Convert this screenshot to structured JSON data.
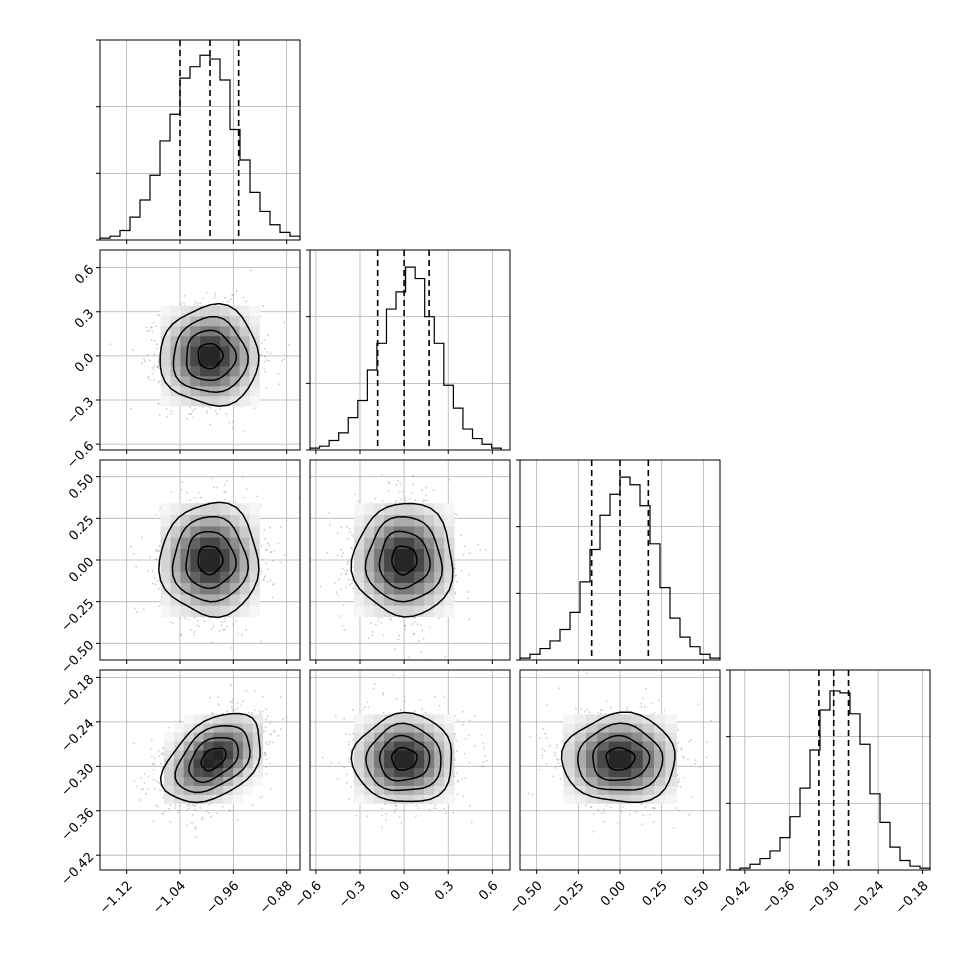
{
  "chart_data": {
    "type": "corner",
    "grid": true,
    "title": "",
    "parameters": [
      {
        "range": [
          -1.16,
          -0.86
        ],
        "ticks": [
          "-1.12",
          "-1.04",
          "-0.96",
          "-0.88"
        ],
        "tick_values": [
          -1.12,
          -1.04,
          -0.96,
          -0.88
        ],
        "quantiles": [
          -1.04,
          -0.995,
          -0.952
        ],
        "mean": -0.995,
        "sd": 0.037
      },
      {
        "range": [
          -0.64,
          0.72
        ],
        "ticks": [
          "-0.6",
          "-0.3",
          "0.0",
          "0.3",
          "0.6"
        ],
        "tick_values": [
          -0.6,
          -0.3,
          0.0,
          0.3,
          0.6
        ],
        "quantiles": [
          -0.18,
          0.0,
          0.17
        ],
        "mean": 0.0,
        "sd": 0.17
      },
      {
        "range": [
          -0.6,
          0.6
        ],
        "ticks": [
          "-0.50",
          "-0.25",
          "0.00",
          "0.25",
          "0.50"
        ],
        "tick_values": [
          -0.5,
          -0.25,
          0.0,
          0.25,
          0.5
        ],
        "quantiles": [
          -0.17,
          0.0,
          0.17
        ],
        "mean": 0.0,
        "sd": 0.17
      },
      {
        "range": [
          -0.44,
          -0.17
        ],
        "ticks": [
          "-0.42",
          "-0.36",
          "-0.30",
          "-0.24",
          "-0.18"
        ],
        "tick_values": [
          -0.42,
          -0.36,
          -0.3,
          -0.24,
          -0.18
        ],
        "quantiles": [
          -0.32,
          -0.3,
          -0.28
        ],
        "mean": -0.3,
        "sd": 0.03
      }
    ],
    "histograms": [
      {
        "bins_left": [
          -1.16,
          -1.145,
          -1.13,
          -1.115,
          -1.1,
          -1.085,
          -1.07,
          -1.055,
          -1.04,
          -1.025,
          -1.01,
          -0.995,
          -0.98,
          -0.965,
          -0.95,
          -0.935,
          -0.92,
          -0.905,
          -0.89,
          -0.875
        ],
        "bin_width": 0.015,
        "counts": [
          0.01,
          0.02,
          0.05,
          0.12,
          0.21,
          0.34,
          0.52,
          0.66,
          0.85,
          0.91,
          0.97,
          0.95,
          0.84,
          0.58,
          0.42,
          0.25,
          0.15,
          0.08,
          0.04,
          0.02
        ]
      },
      {
        "bins_left": [
          -0.64,
          -0.575,
          -0.51,
          -0.445,
          -0.38,
          -0.315,
          -0.25,
          -0.185,
          -0.12,
          -0.055,
          0.01,
          0.075,
          0.14,
          0.205,
          0.27,
          0.335,
          0.4,
          0.465,
          0.53,
          0.595
        ],
        "bin_width": 0.065,
        "counts": [
          0.01,
          0.02,
          0.05,
          0.09,
          0.17,
          0.26,
          0.42,
          0.56,
          0.74,
          0.83,
          0.96,
          0.9,
          0.7,
          0.56,
          0.34,
          0.22,
          0.11,
          0.06,
          0.03,
          0.01
        ]
      },
      {
        "bins_left": [
          -0.6,
          -0.54,
          -0.48,
          -0.42,
          -0.36,
          -0.3,
          -0.24,
          -0.18,
          -0.12,
          -0.06,
          0.0,
          0.06,
          0.12,
          0.18,
          0.24,
          0.3,
          0.36,
          0.42,
          0.48,
          0.54
        ],
        "bin_width": 0.06,
        "counts": [
          0.01,
          0.03,
          0.06,
          0.1,
          0.16,
          0.25,
          0.41,
          0.58,
          0.76,
          0.87,
          0.96,
          0.92,
          0.81,
          0.61,
          0.38,
          0.22,
          0.12,
          0.07,
          0.03,
          0.01
        ]
      },
      {
        "bins_left": [
          -0.44,
          -0.4265,
          -0.413,
          -0.3995,
          -0.386,
          -0.3725,
          -0.359,
          -0.3455,
          -0.332,
          -0.3185,
          -0.305,
          -0.2915,
          -0.278,
          -0.2645,
          -0.251,
          -0.2375,
          -0.224,
          -0.2105,
          -0.197,
          -0.1835
        ],
        "bin_width": 0.0135,
        "counts": [
          0.0,
          0.01,
          0.03,
          0.06,
          0.1,
          0.17,
          0.28,
          0.43,
          0.63,
          0.84,
          0.94,
          0.93,
          0.82,
          0.66,
          0.4,
          0.25,
          0.12,
          0.05,
          0.02,
          0.01
        ]
      }
    ],
    "pairs": [
      {
        "x": 0,
        "y": 1,
        "rho": 0.0,
        "center": [
          -0.995,
          0.0
        ]
      },
      {
        "x": 0,
        "y": 2,
        "rho": 0.0,
        "center": [
          -0.995,
          0.0
        ]
      },
      {
        "x": 1,
        "y": 2,
        "rho": 0.0,
        "center": [
          0.0,
          0.0
        ]
      },
      {
        "x": 0,
        "y": 3,
        "rho": 0.4,
        "center": [
          -0.99,
          -0.29
        ]
      },
      {
        "x": 1,
        "y": 3,
        "rho": 0.0,
        "center": [
          0.0,
          -0.29
        ]
      },
      {
        "x": 2,
        "y": 3,
        "rho": 0.0,
        "center": [
          0.0,
          -0.29
        ]
      }
    ],
    "contour_levels_sigma": [
      0.5,
      1.0,
      1.5,
      2.0
    ]
  }
}
